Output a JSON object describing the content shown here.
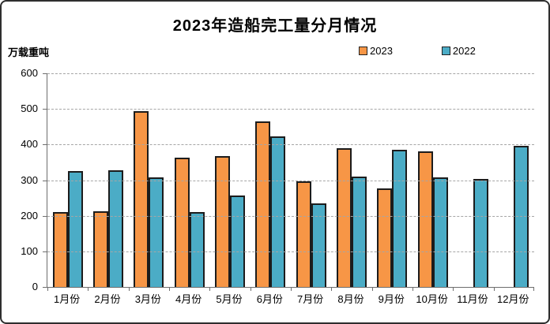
{
  "chart_data": {
    "type": "bar",
    "title": "2023年造船完工量分月情况",
    "unit_label": "万载重吨",
    "categories": [
      "1月份",
      "2月份",
      "3月份",
      "4月份",
      "5月份",
      "6月份",
      "7月份",
      "8月份",
      "9月份",
      "10月份",
      "11月份",
      "12月份"
    ],
    "series": [
      {
        "name": "2023",
        "color": "#F79646",
        "values": [
          211,
          212,
          494,
          363,
          368,
          466,
          296,
          389,
          276,
          381,
          null,
          null
        ]
      },
      {
        "name": "2022",
        "color": "#4BACC6",
        "values": [
          326,
          328,
          308,
          211,
          257,
          422,
          235,
          310,
          386,
          308,
          303,
          396
        ]
      }
    ],
    "ylim": [
      0,
      600
    ],
    "yticks": [
      0,
      100,
      200,
      300,
      400,
      500,
      600
    ],
    "grid": "horizontal-dashed",
    "legend_position": "top-right",
    "colors": {
      "bar_border": "#1c1c1c",
      "axis": "#6e6e6e",
      "gridline": "#a6a6a6",
      "text": "#000000"
    }
  }
}
